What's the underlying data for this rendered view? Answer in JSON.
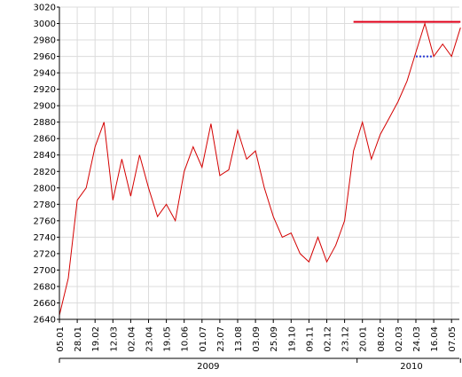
{
  "chart_data": {
    "type": "line",
    "title": "",
    "xlabel": "",
    "ylabel": "",
    "ylim": [
      2640,
      3020
    ],
    "y_ticks": [
      2640,
      2660,
      2680,
      2700,
      2720,
      2740,
      2760,
      2780,
      2800,
      2820,
      2840,
      2860,
      2880,
      2900,
      2920,
      2940,
      2960,
      2980,
      3000,
      3020
    ],
    "grid": true,
    "legend": "none",
    "x_tick_labels": [
      "05.01",
      "28.01",
      "19.02",
      "12.03",
      "02.04",
      "23.04",
      "19.05",
      "10.06",
      "01.07",
      "23.07",
      "13.08",
      "03.09",
      "25.09",
      "19.10",
      "09.11",
      "02.12",
      "23.12",
      "20.01",
      "08.02",
      "02.03",
      "24.03",
      "16.04",
      "07.05"
    ],
    "years": [
      {
        "label": "2009",
        "first_tick": 0,
        "last_tick": 16
      },
      {
        "label": "2010",
        "first_tick": 17,
        "last_tick": 22
      }
    ],
    "series": [
      {
        "color": "#d40000",
        "x": [
          0,
          0.5,
          1,
          1.5,
          2,
          2.5,
          3,
          3.5,
          4,
          4.5,
          5,
          5.5,
          6,
          6.5,
          7,
          7.5,
          8,
          8.5,
          9,
          9.5,
          10,
          10.5,
          11,
          11.5,
          12,
          12.5,
          13,
          13.5,
          14,
          14.5,
          15,
          15.5,
          16,
          16.5,
          17,
          17.5,
          18,
          18.5,
          19,
          19.5,
          20,
          20.5,
          21,
          21.5,
          22,
          22.5
        ],
        "values": [
          2645,
          2690,
          2785,
          2800,
          2850,
          2880,
          2785,
          2835,
          2790,
          2840,
          2800,
          2765,
          2780,
          2760,
          2820,
          2850,
          2825,
          2878,
          2815,
          2822,
          2870,
          2835,
          2845,
          2800,
          2765,
          2740,
          2745,
          2720,
          2710,
          2740,
          2710,
          2730,
          2760,
          2845,
          2880,
          2835,
          2865,
          2885,
          2905,
          2930,
          2965,
          3000,
          2960,
          2975,
          2960,
          2995
        ]
      }
    ],
    "annotations": [
      {
        "kind": "resistance-line",
        "color": "#e0001a",
        "x": [
          16.5,
          22.5
        ],
        "y": 3002
      },
      {
        "kind": "support-line",
        "color": "#2b3bd6",
        "x": [
          20.0,
          21.0
        ],
        "y": 2960
      }
    ]
  }
}
